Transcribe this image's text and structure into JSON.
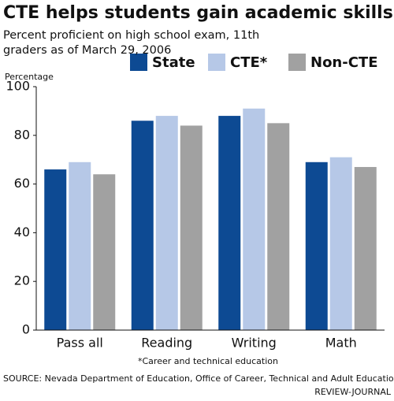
{
  "chart_data": {
    "type": "bar",
    "title": "CTE helps students gain academic skills",
    "subtitle": "Percent proficient on high school exam, 11th graders as of March 29, 2006",
    "y_label": "Percentage",
    "categories": [
      "Pass all",
      "Reading",
      "Writing",
      "Math"
    ],
    "series": [
      {
        "name": "State",
        "color": "#0d4a93",
        "values": [
          66,
          86,
          88,
          69
        ]
      },
      {
        "name": "CTE*",
        "color": "#b6c8e7",
        "values": [
          69,
          88,
          91,
          71
        ]
      },
      {
        "name": "Non-CTE",
        "color": "#a1a1a1",
        "values": [
          64,
          84,
          85,
          67
        ]
      }
    ],
    "ylim": [
      0,
      100
    ],
    "yticks": [
      0,
      20,
      40,
      60,
      80,
      100
    ],
    "grid": false,
    "footnote": "*Career and technical education",
    "source": "SOURCE: Nevada Department of Education, Office of Career, Technical and Adult Education",
    "credit": "REVIEW-JOURNAL"
  }
}
